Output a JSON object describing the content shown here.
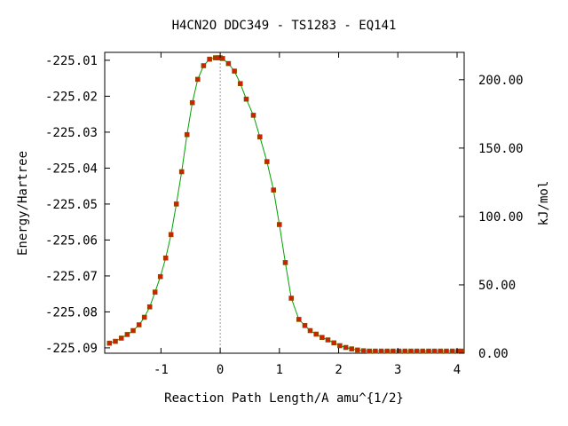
{
  "chart_data": {
    "type": "scatter",
    "title": "H4CN2O   DDC349 - TS1283 - EQ141",
    "xlabel": "Reaction Path Length/A amu^{1/2}",
    "ylabel": "Energy/Hartree",
    "y2label": "kJ/mol",
    "xlim": [
      -1.95,
      4.12
    ],
    "ylim": [
      -225.0915,
      -225.0078
    ],
    "y2lim": [
      0.0,
      220.0
    ],
    "x_ticks": [
      -1,
      0,
      1,
      2,
      3,
      4
    ],
    "x_tick_labels": [
      "-1",
      "0",
      "1",
      "2",
      "3",
      "4"
    ],
    "y_ticks": [
      -225.01,
      -225.02,
      -225.03,
      -225.04,
      -225.05,
      -225.06,
      -225.07,
      -225.08,
      -225.09
    ],
    "y_tick_labels": [
      "-225.01",
      "-225.02",
      "-225.03",
      "-225.04",
      "-225.05",
      "-225.06",
      "-225.07",
      "-225.08",
      "-225.09"
    ],
    "y2_ticks": [
      0,
      50,
      100,
      150,
      200
    ],
    "y2_tick_labels": [
      "0.00",
      "50.00",
      "100.00",
      "150.00",
      "200.00"
    ],
    "vline_x": 0,
    "grid": false,
    "legend": "none",
    "colors": {
      "line": "#00a000",
      "marker": "#cc2200",
      "marker_edge": "#7a5a00",
      "vline": "#999999"
    },
    "series": [
      {
        "x": [
          -1.87,
          -1.77,
          -1.67,
          -1.57,
          -1.47,
          -1.37,
          -1.28,
          -1.19,
          -1.1,
          -1.01,
          -0.92,
          -0.83,
          -0.74,
          -0.65,
          -0.56,
          -0.47,
          -0.38,
          -0.28,
          -0.18,
          -0.08,
          -0.04,
          0.0,
          0.04,
          0.14,
          0.24,
          0.34,
          0.44,
          0.56,
          0.67,
          0.79,
          0.9,
          1.0,
          1.1,
          1.2,
          1.33,
          1.43,
          1.52,
          1.62,
          1.72,
          1.82,
          1.92,
          2.02,
          2.12,
          2.22,
          2.32,
          2.42,
          2.52,
          2.62,
          2.72,
          2.82,
          2.92,
          3.02,
          3.12,
          3.22,
          3.32,
          3.42,
          3.52,
          3.62,
          3.72,
          3.82,
          3.92,
          4.02,
          4.08
        ],
        "y": [
          -225.0887,
          -225.0882,
          -225.0873,
          -225.0863,
          -225.0852,
          -225.0836,
          -225.0815,
          -225.0786,
          -225.0745,
          -225.0702,
          -225.065,
          -225.0585,
          -225.05,
          -225.041,
          -225.0307,
          -225.0218,
          -225.0153,
          -225.0115,
          -225.0097,
          -225.0093,
          -225.0093,
          -225.0093,
          -225.0095,
          -225.0109,
          -225.013,
          -225.0165,
          -225.0208,
          -225.0253,
          -225.0313,
          -225.0382,
          -225.0461,
          -225.0557,
          -225.0663,
          -225.0762,
          -225.0821,
          -225.0838,
          -225.0852,
          -225.0862,
          -225.0871,
          -225.0878,
          -225.0886,
          -225.0894,
          -225.0899,
          -225.0903,
          -225.0906,
          -225.0908,
          -225.0909,
          -225.0909,
          -225.0909,
          -225.0909,
          -225.0909,
          -225.0909,
          -225.0909,
          -225.0909,
          -225.0909,
          -225.0909,
          -225.0909,
          -225.0909,
          -225.0909,
          -225.0909,
          -225.0909,
          -225.0909,
          -225.0909
        ]
      }
    ]
  }
}
